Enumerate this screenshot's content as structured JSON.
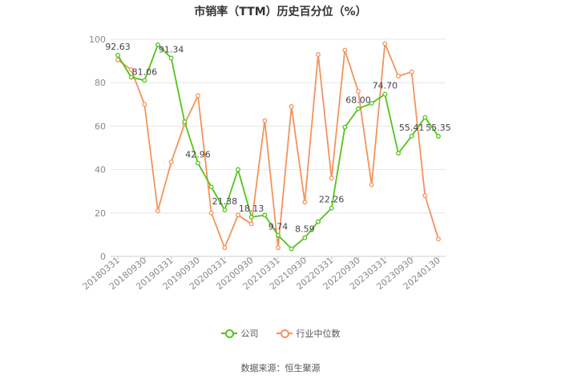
{
  "chart_data": {
    "type": "line",
    "title": "市销率（TTM）历史百分位（%）",
    "ylim": [
      0,
      100
    ],
    "yticks": [
      "0",
      "20",
      "40",
      "60",
      "80",
      "100"
    ],
    "tick_labels": [
      "20180331",
      "20180930",
      "20190331",
      "20190930",
      "20200331",
      "20200930",
      "20210331",
      "20210930",
      "20220331",
      "20220930",
      "20230331",
      "20230930",
      "20240130"
    ],
    "series": [
      {
        "name": "公司",
        "color": "#52c41a",
        "values": [
          92.63,
          82.5,
          81.06,
          97.5,
          91.34,
          62.0,
          42.96,
          32.0,
          21.38,
          40.0,
          18.13,
          19.0,
          9.74,
          3.5,
          8.59,
          16.0,
          22.26,
          59.5,
          68.0,
          70.5,
          74.7,
          47.5,
          55.41,
          64.0,
          55.35
        ],
        "data_labels": [
          {
            "index": 0,
            "text": "92.63"
          },
          {
            "index": 2,
            "text": "81.06"
          },
          {
            "index": 4,
            "text": "91.34"
          },
          {
            "index": 6,
            "text": "42.96"
          },
          {
            "index": 8,
            "text": "21.38"
          },
          {
            "index": 10,
            "text": "18.13"
          },
          {
            "index": 12,
            "text": "9.74"
          },
          {
            "index": 14,
            "text": "8.59"
          },
          {
            "index": 16,
            "text": "22.26"
          },
          {
            "index": 18,
            "text": "68.00"
          },
          {
            "index": 20,
            "text": "74.70"
          },
          {
            "index": 22,
            "text": "55.41"
          },
          {
            "index": 24,
            "text": "55.35"
          }
        ]
      },
      {
        "name": "行业中位数",
        "color": "#f4935b",
        "values": [
          90.5,
          86.0,
          70.0,
          21.0,
          43.5,
          61.0,
          74.0,
          20.0,
          4.0,
          19.0,
          15.0,
          62.5,
          4.0,
          69.0,
          25.0,
          93.0,
          36.0,
          95.0,
          76.0,
          33.0,
          98.0,
          83.0,
          85.0,
          28.0,
          8.0
        ]
      }
    ],
    "grid": true,
    "legend_position": "bottom"
  },
  "source": "数据来源：恒生聚源"
}
